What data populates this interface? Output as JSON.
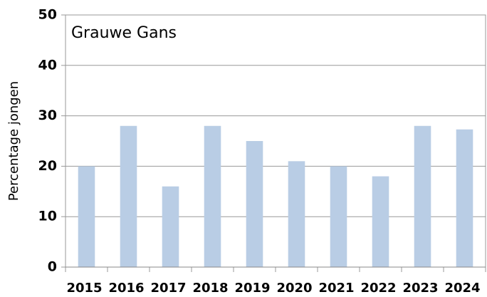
{
  "chart_data": {
    "type": "bar",
    "title": "Grauwe Gans",
    "y_label": "Percentage jongen",
    "categories": [
      "2015",
      "2016",
      "2017",
      "2018",
      "2019",
      "2020",
      "2021",
      "2022",
      "2023",
      "2024"
    ],
    "values": [
      20,
      28,
      16,
      28,
      25,
      21,
      20,
      18,
      28,
      27.3
    ],
    "color": "#b9cde5",
    "ylim": [
      0,
      50
    ],
    "yticks": [
      0,
      10,
      20,
      30,
      40,
      50
    ],
    "grid": true
  }
}
